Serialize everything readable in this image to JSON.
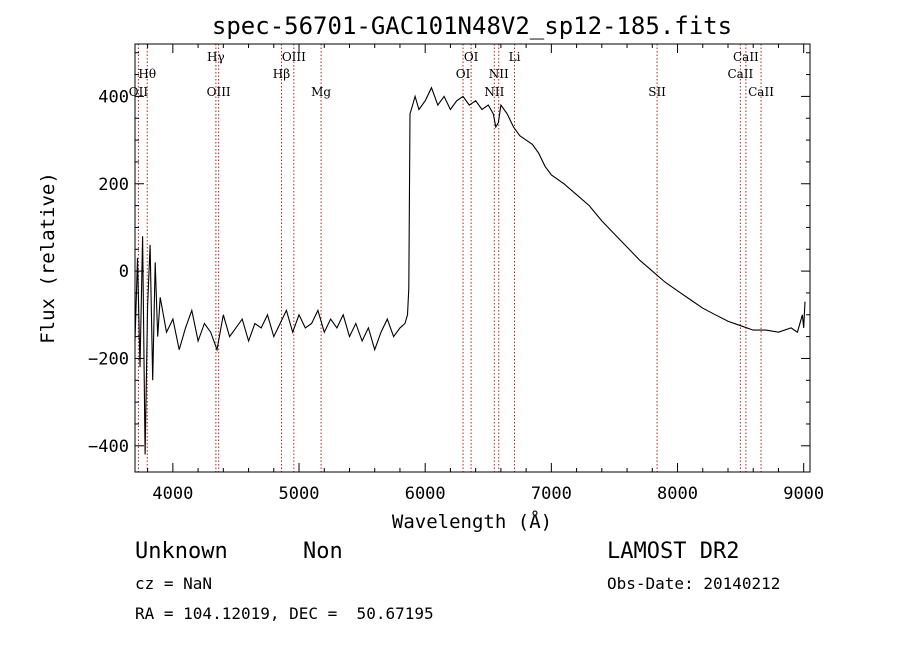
{
  "chart_data": {
    "type": "line",
    "title": "spec-56701-GAC101N48V2_sp12-185.fits",
    "xlabel": "Wavelength (Å)",
    "ylabel": "Flux (relative)",
    "xlim": [
      3700,
      9050
    ],
    "ylim": [
      -460,
      520
    ],
    "x_ticks": [
      4000,
      5000,
      6000,
      7000,
      8000,
      9000
    ],
    "x_tick_labels": [
      "4000",
      "5000",
      "6000",
      "7000",
      "8000",
      "9000"
    ],
    "y_ticks": [
      -400,
      -200,
      0,
      200,
      400
    ],
    "y_tick_labels": [
      "−400",
      "−200",
      "0",
      "200",
      "400"
    ],
    "grid": false,
    "legend": "none",
    "series": [
      {
        "color": "#000000",
        "x": [
          3700,
          3720,
          3740,
          3760,
          3780,
          3800,
          3820,
          3840,
          3860,
          3880,
          3900,
          3950,
          4000,
          4050,
          4100,
          4150,
          4200,
          4250,
          4300,
          4350,
          4400,
          4450,
          4500,
          4550,
          4600,
          4650,
          4700,
          4750,
          4800,
          4850,
          4900,
          4950,
          5000,
          5050,
          5100,
          5150,
          5200,
          5250,
          5300,
          5350,
          5400,
          5450,
          5500,
          5550,
          5600,
          5650,
          5700,
          5750,
          5800,
          5840,
          5860,
          5870,
          5880,
          5900,
          5920,
          5950,
          6000,
          6050,
          6100,
          6150,
          6200,
          6250,
          6300,
          6350,
          6400,
          6450,
          6500,
          6540,
          6560,
          6580,
          6600,
          6650,
          6700,
          6750,
          6800,
          6850,
          6900,
          6950,
          7000,
          7100,
          7200,
          7300,
          7400,
          7500,
          7600,
          7700,
          7800,
          7900,
          8000,
          8100,
          8200,
          8300,
          8400,
          8500,
          8600,
          8700,
          8800,
          8900,
          8950,
          8990,
          9000,
          9010
        ],
        "y": [
          -160,
          30,
          -220,
          80,
          -420,
          -80,
          60,
          -250,
          20,
          -150,
          -60,
          -140,
          -110,
          -180,
          -130,
          -90,
          -160,
          -120,
          -140,
          -180,
          -100,
          -150,
          -130,
          -110,
          -160,
          -120,
          -130,
          -100,
          -150,
          -120,
          -90,
          -140,
          -100,
          -130,
          -120,
          -90,
          -140,
          -110,
          -130,
          -100,
          -150,
          -120,
          -160,
          -130,
          -180,
          -140,
          -110,
          -150,
          -130,
          -120,
          -100,
          -40,
          360,
          380,
          400,
          370,
          390,
          420,
          380,
          400,
          370,
          390,
          400,
          380,
          390,
          370,
          380,
          360,
          330,
          340,
          380,
          360,
          330,
          310,
          300,
          290,
          270,
          240,
          220,
          200,
          175,
          150,
          115,
          85,
          55,
          25,
          0,
          -25,
          -45,
          -65,
          -85,
          -100,
          -115,
          -125,
          -135,
          -135,
          -140,
          -130,
          -140,
          -100,
          -130,
          -70
        ]
      }
    ],
    "annotations": [
      {
        "label": "Hθ",
        "x": 3797,
        "row": 1
      },
      {
        "label": "OII",
        "x": 3727,
        "row": 2
      },
      {
        "label": "Hγ",
        "x": 4341,
        "row": 0
      },
      {
        "label": "OIII",
        "x": 4363,
        "row": 2
      },
      {
        "label": "Hβ",
        "x": 4861,
        "row": 1
      },
      {
        "label": "OIII",
        "x": 4959,
        "row": 0
      },
      {
        "label": "Mg",
        "x": 5175,
        "row": 2
      },
      {
        "label": "OI",
        "x": 6364,
        "row": 0
      },
      {
        "label": "OI",
        "x": 6300,
        "row": 1
      },
      {
        "label": "NII",
        "x": 6583,
        "row": 1
      },
      {
        "label": "NII",
        "x": 6548,
        "row": 2
      },
      {
        "label": "Li",
        "x": 6708,
        "row": 0
      },
      {
        "label": "SII",
        "x": 7838,
        "row": 2
      },
      {
        "label": "CaII",
        "x": 8542,
        "row": 0
      },
      {
        "label": "CaII",
        "x": 8498,
        "row": 1
      },
      {
        "label": "CaII",
        "x": 8662,
        "row": 2
      }
    ]
  },
  "info": {
    "object_class": "Unknown",
    "subclass": "Non",
    "survey": "LAMOST DR2",
    "redshift": "cz = NaN",
    "obs_date": "Obs-Date: 20140212",
    "coordinates": "RA = 104.12019, DEC =  50.67195"
  },
  "colors": {
    "spectrum": "#000000",
    "line_marker": "#b22222",
    "background": "#ffffff"
  }
}
